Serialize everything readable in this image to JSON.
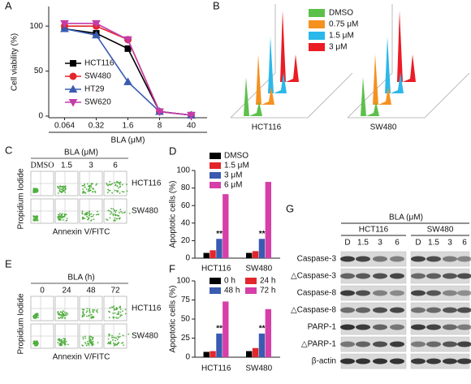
{
  "panel_labels": [
    "A",
    "B",
    "C",
    "D",
    "E",
    "F",
    "G"
  ],
  "chart_data": [
    {
      "type": "line",
      "y_label": "Cell viability (%)",
      "x_label": "BLA (μM)",
      "categories": [
        "0.064",
        "0.32",
        "1.6",
        "8",
        "40"
      ],
      "ylim": [
        0,
        120
      ],
      "yticks": [
        0,
        50,
        100
      ],
      "series": [
        {
          "name": "HCT116",
          "color": "#000000",
          "marker": "square",
          "values": [
            97,
            92,
            75,
            5,
            1
          ]
        },
        {
          "name": "SW480",
          "color": "#e3262b",
          "marker": "circle",
          "values": [
            100,
            100,
            85,
            5,
            1
          ]
        },
        {
          "name": "HT29",
          "color": "#3a5bb0",
          "marker": "triangle",
          "values": [
            97,
            90,
            38,
            5,
            1
          ]
        },
        {
          "name": "SW620",
          "color": "#c43ca8",
          "marker": "triangle-down",
          "values": [
            103,
            103,
            85,
            5,
            1
          ]
        }
      ]
    },
    {
      "type": "bar",
      "y_label": "Apoptotic cells (%)",
      "categories": [
        "HCT116",
        "SW480"
      ],
      "ylim": [
        0,
        100
      ],
      "yticks": [
        0,
        20,
        40,
        60,
        80,
        100
      ],
      "series": [
        {
          "name": "DMSO",
          "color": "#000000",
          "values": [
            6,
            6
          ]
        },
        {
          "name": "1.5 μM",
          "color": "#e3262b",
          "values": [
            9,
            8
          ]
        },
        {
          "name": "3 μM",
          "color": "#3a5bb0",
          "values": [
            22,
            22
          ]
        },
        {
          "name": "6 μM",
          "color": "#d63fa8",
          "values": [
            73,
            87
          ]
        }
      ],
      "annotations": [
        "**",
        "**"
      ]
    },
    {
      "type": "bar",
      "y_label": "Apoptotic cells (%)",
      "categories": [
        "HCT116",
        "SW480"
      ],
      "ylim": [
        0,
        100
      ],
      "yticks": [
        0,
        25,
        50,
        75,
        100
      ],
      "series": [
        {
          "name": "0 h",
          "color": "#000000",
          "values": [
            7,
            8
          ]
        },
        {
          "name": "24 h",
          "color": "#e3262b",
          "values": [
            8,
            12
          ]
        },
        {
          "name": "48 h",
          "color": "#3a5bb0",
          "values": [
            31,
            31
          ]
        },
        {
          "name": "72 h",
          "color": "#d63fa8",
          "values": [
            73,
            63
          ]
        }
      ],
      "annotations": [
        "**",
        "**"
      ]
    }
  ],
  "flow_histogram": {
    "series": [
      {
        "name": "DMSO",
        "color": "#5cc14a"
      },
      {
        "name": "0.75 μM",
        "color": "#f5911f"
      },
      {
        "name": "1.5 μM",
        "color": "#2bb8ea"
      },
      {
        "name": "3 μM",
        "color": "#ec1c24"
      }
    ],
    "samples": [
      "HCT116",
      "SW480"
    ]
  },
  "flow_scatter_c": {
    "title": "BLA (μM)",
    "columns": [
      "DMSO",
      "1.5",
      "3",
      "6"
    ],
    "rows": [
      "HCT116",
      "SW480"
    ],
    "y_label": "Propidium Iodide",
    "x_label": "Annexin V/FITC"
  },
  "flow_scatter_e": {
    "title": "BLA (h)",
    "columns": [
      "0",
      "24",
      "48",
      "72"
    ],
    "rows": [
      "HCT116",
      "SW480"
    ],
    "y_label": "Propidium Iodide",
    "x_label": "Annexin V/FITC"
  },
  "western_blot": {
    "title": "BLA (μM)",
    "groups": [
      "HCT116",
      "SW480"
    ],
    "lanes": [
      "D",
      "1.5",
      "3",
      "6",
      "D",
      "1.5",
      "3",
      "6"
    ],
    "rows": [
      "Caspase-3",
      "△Caspase-3",
      "Caspase-8",
      "△Caspase-8",
      "PARP-1",
      "△PARP-1",
      "β-actin"
    ]
  }
}
